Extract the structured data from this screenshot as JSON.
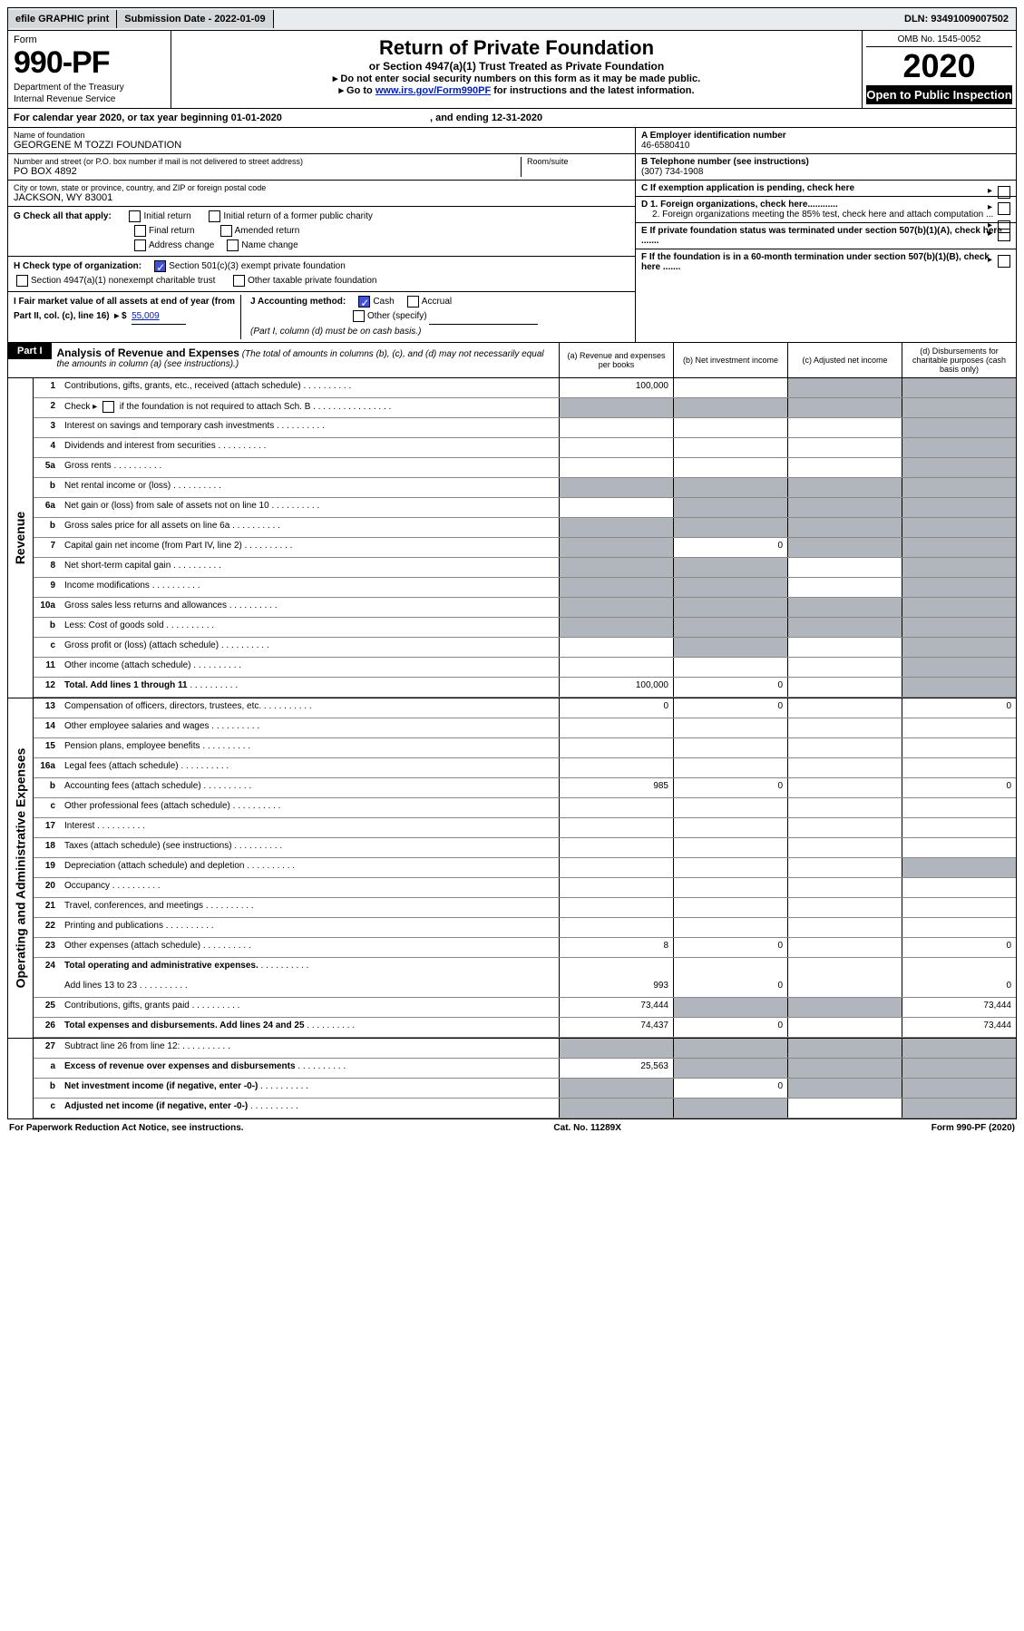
{
  "top": {
    "efile": "efile GRAPHIC print",
    "submission_label": "Submission Date - 2022-01-09",
    "dln": "DLN: 93491009007502"
  },
  "header": {
    "form_label": "Form",
    "form_number": "990-PF",
    "dept1": "Department of the Treasury",
    "dept2": "Internal Revenue Service",
    "title": "Return of Private Foundation",
    "subtitle": "or Section 4947(a)(1) Trust Treated as Private Foundation",
    "note1": "▸ Do not enter social security numbers on this form as it may be made public.",
    "note2_pre": "▸ Go to ",
    "note2_link": "www.irs.gov/Form990PF",
    "note2_post": " for instructions and the latest information.",
    "omb": "OMB No. 1545-0052",
    "year": "2020",
    "open": "Open to Public Inspection"
  },
  "cal": {
    "text": "For calendar year 2020, or tax year beginning 01-01-2020",
    "ending": ", and ending 12-31-2020"
  },
  "sec_left": {
    "name_label": "Name of foundation",
    "name": "GEORGENE M TOZZI FOUNDATION",
    "addr_label": "Number and street (or P.O. box number if mail is not delivered to street address)",
    "addr": "PO BOX 4892",
    "room_label": "Room/suite",
    "city_label": "City or town, state or province, country, and ZIP or foreign postal code",
    "city": "JACKSON, WY  83001",
    "g_label": "G Check all that apply:",
    "g1": "Initial return",
    "g2": "Initial return of a former public charity",
    "g3": "Final return",
    "g4": "Amended return",
    "g5": "Address change",
    "g6": "Name change",
    "h_label": "H Check type of organization:",
    "h1": "Section 501(c)(3) exempt private foundation",
    "h2": "Section 4947(a)(1) nonexempt charitable trust",
    "h3": "Other taxable private foundation",
    "i_label": "I Fair market value of all assets at end of year (from Part II, col. (c), line 16)",
    "i_val": "55,009",
    "i_prefix": "▸ $",
    "j_label": "J Accounting method:",
    "j1": "Cash",
    "j2": "Accrual",
    "j3": "Other (specify)",
    "j_note": "(Part I, column (d) must be on cash basis.)"
  },
  "sec_right": {
    "a_label": "A Employer identification number",
    "a_val": "46-6580410",
    "b_label": "B Telephone number (see instructions)",
    "b_val": "(307) 734-1908",
    "c_label": "C If exemption application is pending, check here",
    "d1_label": "D 1. Foreign organizations, check here............",
    "d2_label": "2. Foreign organizations meeting the 85% test, check here and attach computation ...",
    "e_label": "E  If private foundation status was terminated under section 507(b)(1)(A), check here .......",
    "f_label": "F  If the foundation is in a 60-month termination under section 507(b)(1)(B), check here .......",
    "arrow": "▸"
  },
  "part1": {
    "label": "Part I",
    "title": "Analysis of Revenue and Expenses",
    "note": "(The total of amounts in columns (b), (c), and (d) may not necessarily equal the amounts in column (a) (see instructions).)",
    "col_a": "(a)   Revenue and expenses per books",
    "col_b": "(b)   Net investment income",
    "col_c": "(c)   Adjusted net income",
    "col_d": "(d)   Disbursements for charitable purposes (cash basis only)"
  },
  "side_revenue": "Revenue",
  "side_expenses": "Operating and Administrative Expenses",
  "rows": {
    "r1": {
      "n": "1",
      "d": "Contributions, gifts, grants, etc., received (attach schedule)",
      "a": "100,000",
      "shade_c": true,
      "shade_d": true
    },
    "r2": {
      "n": "2",
      "d_pre": "Check ▸",
      "d_post": " if the foundation is not required to attach Sch. B",
      "shade_a": true,
      "shade_b": true,
      "shade_c": true,
      "shade_d": true
    },
    "r3": {
      "n": "3",
      "d": "Interest on savings and temporary cash investments",
      "shade_d": true
    },
    "r4": {
      "n": "4",
      "d": "Dividends and interest from securities",
      "shade_d": true
    },
    "r5a": {
      "n": "5a",
      "d": "Gross rents",
      "shade_d": true
    },
    "r5b": {
      "n": "b",
      "d": "Net rental income or (loss)",
      "shade_a": true,
      "shade_b": true,
      "shade_c": true,
      "shade_d": true
    },
    "r6a": {
      "n": "6a",
      "d": "Net gain or (loss) from sale of assets not on line 10",
      "shade_b": true,
      "shade_c": true,
      "shade_d": true
    },
    "r6b": {
      "n": "b",
      "d": "Gross sales price for all assets on line 6a",
      "shade_a": true,
      "shade_b": true,
      "shade_c": true,
      "shade_d": true
    },
    "r7": {
      "n": "7",
      "d": "Capital gain net income (from Part IV, line 2)",
      "b": "0",
      "shade_a": true,
      "shade_c": true,
      "shade_d": true
    },
    "r8": {
      "n": "8",
      "d": "Net short-term capital gain",
      "shade_a": true,
      "shade_b": true,
      "shade_d": true
    },
    "r9": {
      "n": "9",
      "d": "Income modifications",
      "shade_a": true,
      "shade_b": true,
      "shade_d": true
    },
    "r10a": {
      "n": "10a",
      "d": "Gross sales less returns and allowances",
      "shade_a": true,
      "shade_b": true,
      "shade_c": true,
      "shade_d": true
    },
    "r10b": {
      "n": "b",
      "d": "Less: Cost of goods sold",
      "shade_a": true,
      "shade_b": true,
      "shade_c": true,
      "shade_d": true
    },
    "r10c": {
      "n": "c",
      "d": "Gross profit or (loss) (attach schedule)",
      "shade_b": true,
      "shade_d": true
    },
    "r11": {
      "n": "11",
      "d": "Other income (attach schedule)",
      "shade_d": true
    },
    "r12": {
      "n": "12",
      "d": "Total. Add lines 1 through 11",
      "a": "100,000",
      "b": "0",
      "bold": true,
      "shade_d": true
    },
    "r13": {
      "n": "13",
      "d": "Compensation of officers, directors, trustees, etc.",
      "a": "0",
      "b": "0",
      "d_v": "0"
    },
    "r14": {
      "n": "14",
      "d": "Other employee salaries and wages"
    },
    "r15": {
      "n": "15",
      "d": "Pension plans, employee benefits"
    },
    "r16a": {
      "n": "16a",
      "d": "Legal fees (attach schedule)"
    },
    "r16b": {
      "n": "b",
      "d": "Accounting fees (attach schedule)",
      "a": "985",
      "b": "0",
      "d_v": "0"
    },
    "r16c": {
      "n": "c",
      "d": "Other professional fees (attach schedule)"
    },
    "r17": {
      "n": "17",
      "d": "Interest"
    },
    "r18": {
      "n": "18",
      "d": "Taxes (attach schedule) (see instructions)"
    },
    "r19": {
      "n": "19",
      "d": "Depreciation (attach schedule) and depletion",
      "shade_d": true
    },
    "r20": {
      "n": "20",
      "d": "Occupancy"
    },
    "r21": {
      "n": "21",
      "d": "Travel, conferences, and meetings"
    },
    "r22": {
      "n": "22",
      "d": "Printing and publications"
    },
    "r23": {
      "n": "23",
      "d": "Other expenses (attach schedule)",
      "a": "8",
      "b": "0",
      "d_v": "0"
    },
    "r24": {
      "n": "24",
      "d": "Total operating and administrative expenses.",
      "bold": true,
      "noborder": true
    },
    "r24b": {
      "n": "",
      "d": "Add lines 13 to 23",
      "a": "993",
      "b": "0",
      "d_v": "0"
    },
    "r25": {
      "n": "25",
      "d": "Contributions, gifts, grants paid",
      "a": "73,444",
      "d_v": "73,444",
      "shade_b": true,
      "shade_c": true
    },
    "r26": {
      "n": "26",
      "d": "Total expenses and disbursements. Add lines 24 and 25",
      "a": "74,437",
      "b": "0",
      "d_v": "73,444",
      "bold": true
    },
    "r27": {
      "n": "27",
      "d": "Subtract line 26 from line 12:",
      "shade_a": true,
      "shade_b": true,
      "shade_c": true,
      "shade_d": true
    },
    "r27a": {
      "n": "a",
      "d": "Excess of revenue over expenses and disbursements",
      "a": "25,563",
      "bold": true,
      "shade_b": true,
      "shade_c": true,
      "shade_d": true
    },
    "r27b": {
      "n": "b",
      "d": "Net investment income (if negative, enter -0-)",
      "b": "0",
      "bold": true,
      "shade_a": true,
      "shade_c": true,
      "shade_d": true
    },
    "r27c": {
      "n": "c",
      "d": "Adjusted net income (if negative, enter -0-)",
      "bold": true,
      "shade_a": true,
      "shade_b": true,
      "shade_d": true
    }
  },
  "footer": {
    "left": "For Paperwork Reduction Act Notice, see instructions.",
    "center": "Cat. No. 11289X",
    "right": "Form 990-PF (2020)"
  },
  "colors": {
    "link": "#0020c0",
    "shade": "#b0b6bc",
    "topbar": "#e8ecef",
    "check": "#4050d8"
  }
}
